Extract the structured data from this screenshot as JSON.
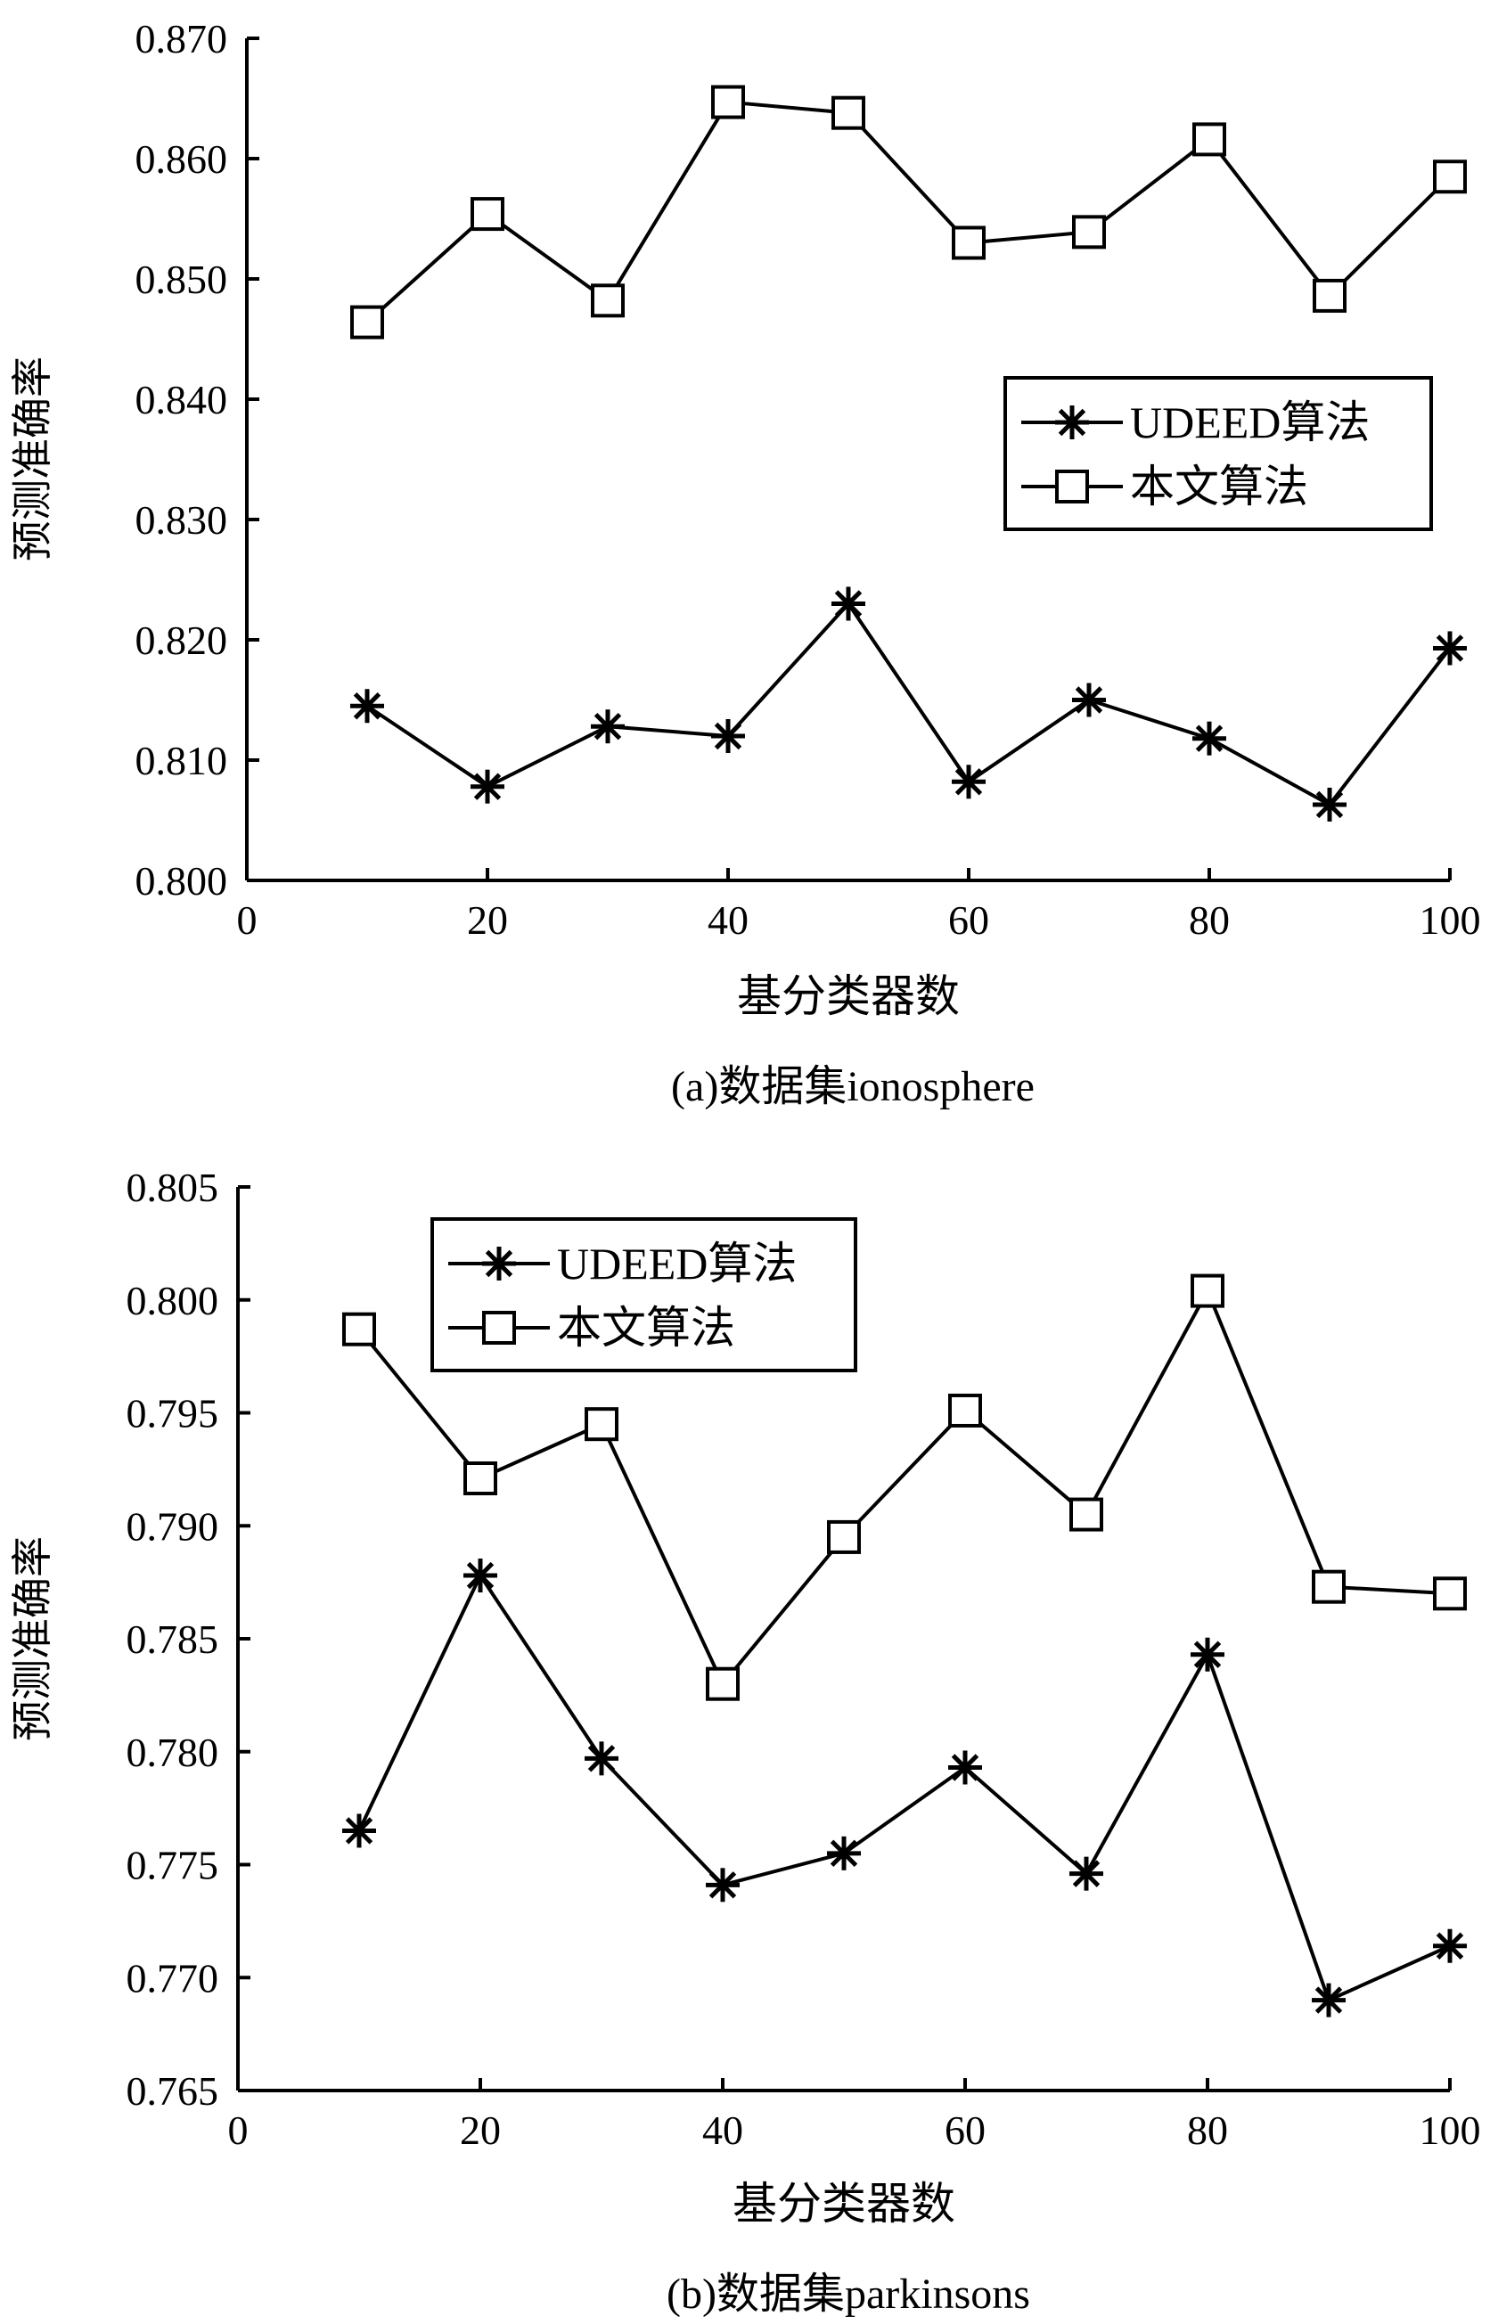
{
  "chart_data": [
    {
      "type": "line",
      "caption": "(a)数据集ionosphere",
      "xlabel": "基分类器数",
      "ylabel": "预测准确率",
      "xlim": [
        0,
        100
      ],
      "ylim": [
        0.8,
        0.87
      ],
      "x_ticks": [
        "0",
        "20",
        "40",
        "60",
        "80",
        "100"
      ],
      "y_ticks": [
        "0.800",
        "0.810",
        "0.820",
        "0.830",
        "0.840",
        "0.850",
        "0.860",
        "0.870"
      ],
      "x": [
        10,
        20,
        30,
        40,
        50,
        60,
        70,
        80,
        90,
        100
      ],
      "legend_position": "center-right",
      "series": [
        {
          "name": "UDEED算法",
          "marker": "asterisk",
          "values": [
            0.8145,
            0.8078,
            0.8128,
            0.812,
            0.823,
            0.8082,
            0.815,
            0.8118,
            0.8063,
            0.8193
          ]
        },
        {
          "name": "本文算法",
          "marker": "square",
          "values": [
            0.8464,
            0.8554,
            0.8482,
            0.8647,
            0.8638,
            0.853,
            0.8539,
            0.8616,
            0.8486,
            0.8585
          ]
        }
      ]
    },
    {
      "type": "line",
      "caption": "(b)数据集parkinsons",
      "xlabel": "基分类器数",
      "ylabel": "预测准确率",
      "xlim": [
        0,
        100
      ],
      "ylim": [
        0.765,
        0.805
      ],
      "x_ticks": [
        "0",
        "20",
        "40",
        "60",
        "80",
        "100"
      ],
      "y_ticks": [
        "0.765",
        "0.770",
        "0.775",
        "0.780",
        "0.785",
        "0.790",
        "0.795",
        "0.800",
        "0.805"
      ],
      "x": [
        10,
        20,
        30,
        40,
        50,
        60,
        70,
        80,
        90,
        100
      ],
      "legend_position": "top-left",
      "series": [
        {
          "name": "UDEED算法",
          "marker": "asterisk",
          "values": [
            0.7765,
            0.7878,
            0.7797,
            0.7741,
            0.7755,
            0.7793,
            0.7746,
            0.7843,
            0.769,
            0.7714
          ]
        },
        {
          "name": "本文算法",
          "marker": "square",
          "values": [
            0.7987,
            0.7921,
            0.7945,
            0.783,
            0.7895,
            0.7951,
            0.7905,
            0.8004,
            0.7873,
            0.787
          ]
        }
      ]
    }
  ]
}
